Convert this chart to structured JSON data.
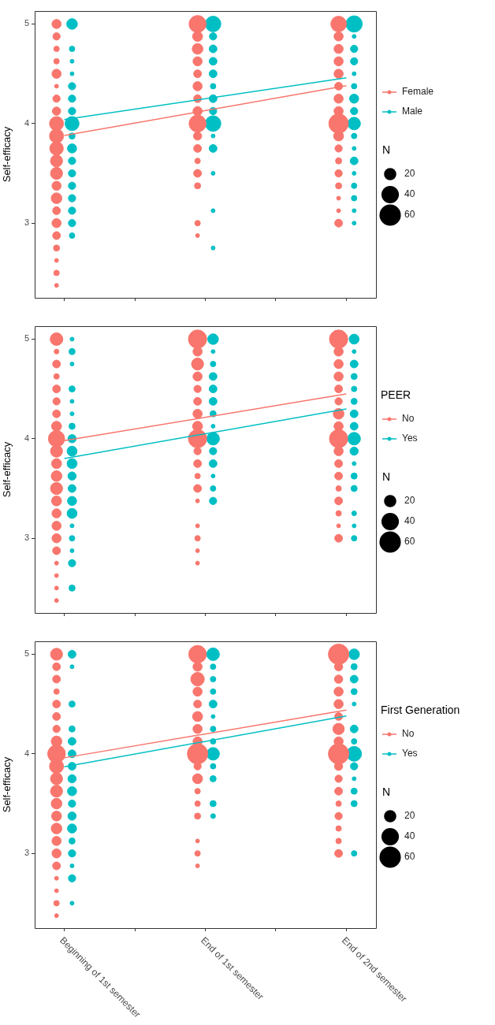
{
  "chart_data": [
    {
      "type": "bubble",
      "ylabel": "Self-efficacy",
      "categories": [
        "Beginning of 1st semester",
        "End of 1st semester",
        "End of 2nd semester"
      ],
      "ylim": [
        2.25,
        5.13
      ],
      "yticks": [
        3,
        4,
        5
      ],
      "grid": false,
      "legend": "right",
      "tick_labels": "y",
      "size_legend": [
        20,
        40,
        60
      ],
      "annotations": [
        "N"
      ],
      "series": [
        {
          "name": "Female",
          "color": "#f8766d",
          "x": [
            "Beginning of 1st semester",
            "Beginning of 1st semester",
            "Beginning of 1st semester",
            "Beginning of 1st semester",
            "Beginning of 1st semester",
            "Beginning of 1st semester",
            "Beginning of 1st semester",
            "Beginning of 1st semester",
            "Beginning of 1st semester",
            "Beginning of 1st semester",
            "Beginning of 1st semester",
            "Beginning of 1st semester",
            "Beginning of 1st semester",
            "Beginning of 1st semester",
            "Beginning of 1st semester",
            "Beginning of 1st semester",
            "Beginning of 1st semester",
            "Beginning of 1st semester",
            "Beginning of 1st semester",
            "Beginning of 1st semester",
            "Beginning of 1st semester",
            "Beginning of 1st semester",
            "End of 1st semester",
            "End of 1st semester",
            "End of 1st semester",
            "End of 1st semester",
            "End of 1st semester",
            "End of 1st semester",
            "End of 1st semester",
            "End of 1st semester",
            "End of 1st semester",
            "End of 1st semester",
            "End of 1st semester",
            "End of 1st semester",
            "End of 1st semester",
            "End of 1st semester",
            "End of 1st semester",
            "End of 1st semester",
            "End of 2nd semester",
            "End of 2nd semester",
            "End of 2nd semester",
            "End of 2nd semester",
            "End of 2nd semester",
            "End of 2nd semester",
            "End of 2nd semester",
            "End of 2nd semester",
            "End of 2nd semester",
            "End of 2nd semester",
            "End of 2nd semester",
            "End of 2nd semester",
            "End of 2nd semester",
            "End of 2nd semester",
            "End of 2nd semester",
            "End of 2nd semester",
            "End of 2nd semester"
          ],
          "values": [
            5,
            4.875,
            4.75,
            4.625,
            4.5,
            4.375,
            4.25,
            4.125,
            4,
            3.875,
            3.75,
            3.625,
            3.5,
            3.375,
            3.25,
            3.125,
            3,
            2.875,
            2.75,
            2.625,
            2.5,
            2.375,
            5,
            4.875,
            4.75,
            4.625,
            4.5,
            4.375,
            4.25,
            4.125,
            4,
            3.875,
            3.75,
            3.625,
            3.5,
            3.375,
            3,
            2.875,
            5,
            4.875,
            4.75,
            4.625,
            4.5,
            4.375,
            4.25,
            4.125,
            4,
            3.875,
            3.75,
            3.625,
            3.5,
            3.375,
            3.25,
            3.125,
            3
          ],
          "sizes": [
            11,
            7,
            4,
            4,
            11,
            2,
            7,
            9,
            26,
            26,
            24,
            19,
            19,
            11,
            15,
            8,
            11,
            8,
            5,
            2,
            4,
            2,
            38,
            13,
            15,
            11,
            8,
            11,
            8,
            11,
            38,
            9,
            8,
            4,
            8,
            5,
            4,
            2,
            32,
            11,
            11,
            11,
            11,
            8,
            11,
            11,
            50,
            13,
            7,
            5,
            7,
            5,
            2,
            2,
            8
          ]
        },
        {
          "name": "Male",
          "color": "#00bfc4",
          "x": [
            "Beginning of 1st semester",
            "Beginning of 1st semester",
            "Beginning of 1st semester",
            "Beginning of 1st semester",
            "Beginning of 1st semester",
            "Beginning of 1st semester",
            "Beginning of 1st semester",
            "Beginning of 1st semester",
            "Beginning of 1st semester",
            "Beginning of 1st semester",
            "Beginning of 1st semester",
            "Beginning of 1st semester",
            "Beginning of 1st semester",
            "Beginning of 1st semester",
            "Beginning of 1st semester",
            "Beginning of 1st semester",
            "Beginning of 1st semester",
            "End of 1st semester",
            "End of 1st semester",
            "End of 1st semester",
            "End of 1st semester",
            "End of 1st semester",
            "End of 1st semester",
            "End of 1st semester",
            "End of 1st semester",
            "End of 1st semester",
            "End of 1st semester",
            "End of 1st semester",
            "End of 1st semester",
            "End of 1st semester",
            "End of 1st semester",
            "End of 2nd semester",
            "End of 2nd semester",
            "End of 2nd semester",
            "End of 2nd semester",
            "End of 2nd semester",
            "End of 2nd semester",
            "End of 2nd semester",
            "End of 2nd semester",
            "End of 2nd semester",
            "End of 2nd semester",
            "End of 2nd semester",
            "End of 2nd semester",
            "End of 2nd semester",
            "End of 2nd semester",
            "End of 2nd semester",
            "End of 2nd semester",
            "End of 2nd semester"
          ],
          "values": [
            5,
            4.75,
            4.625,
            4.5,
            4.375,
            4.25,
            4.125,
            4,
            3.875,
            3.75,
            3.625,
            3.5,
            3.375,
            3.25,
            3.125,
            3,
            2.875,
            5,
            4.875,
            4.75,
            4.625,
            4.5,
            4.375,
            4.25,
            4.125,
            4,
            3.875,
            3.75,
            3.5,
            3.125,
            2.75,
            5,
            4.875,
            4.75,
            4.625,
            4.5,
            4.375,
            4.25,
            4.125,
            4,
            3.875,
            3.75,
            3.625,
            3.5,
            3.375,
            3.25,
            3.125,
            3
          ],
          "sizes": [
            15,
            4,
            2,
            2,
            7,
            7,
            7,
            26,
            5,
            11,
            7,
            7,
            7,
            7,
            7,
            7,
            4,
            32,
            7,
            8,
            8,
            8,
            4,
            8,
            7,
            32,
            2,
            8,
            2,
            2,
            2,
            35,
            2,
            7,
            7,
            2,
            4,
            11,
            7,
            21,
            4,
            2,
            8,
            2,
            4,
            4,
            2,
            2
          ]
        },
        {
          "type": "line",
          "color": "#f8766d",
          "x": [
            "Beginning of 1st semester",
            "End of 2nd semester"
          ],
          "values": [
            3.88,
            4.38
          ]
        },
        {
          "type": "line",
          "color": "#00bfc4",
          "x": [
            "Beginning of 1st semester",
            "End of 2nd semester"
          ],
          "values": [
            4.04,
            4.46
          ]
        }
      ]
    },
    {
      "type": "bubble",
      "ylabel": "Self-efficacy",
      "legend_title": "PEER",
      "categories": [
        "Beginning of 1st semester",
        "End of 1st semester",
        "End of 2nd semester"
      ],
      "ylim": [
        2.25,
        5.13
      ],
      "yticks": [
        3,
        4,
        5
      ],
      "grid": false,
      "legend": "right",
      "tick_labels": "y",
      "size_legend": [
        20,
        40,
        60
      ],
      "annotations": [
        "N"
      ],
      "series": [
        {
          "name": "No",
          "color": "#f8766d",
          "x": [
            "Beginning of 1st semester",
            "Beginning of 1st semester",
            "Beginning of 1st semester",
            "Beginning of 1st semester",
            "Beginning of 1st semester",
            "Beginning of 1st semester",
            "Beginning of 1st semester",
            "Beginning of 1st semester",
            "Beginning of 1st semester",
            "Beginning of 1st semester",
            "Beginning of 1st semester",
            "Beginning of 1st semester",
            "Beginning of 1st semester",
            "Beginning of 1st semester",
            "Beginning of 1st semester",
            "Beginning of 1st semester",
            "Beginning of 1st semester",
            "Beginning of 1st semester",
            "Beginning of 1st semester",
            "Beginning of 1st semester",
            "Beginning of 1st semester",
            "Beginning of 1st semester",
            "End of 1st semester",
            "End of 1st semester",
            "End of 1st semester",
            "End of 1st semester",
            "End of 1st semester",
            "End of 1st semester",
            "End of 1st semester",
            "End of 1st semester",
            "End of 1st semester",
            "End of 1st semester",
            "End of 1st semester",
            "End of 1st semester",
            "End of 1st semester",
            "End of 1st semester",
            "End of 1st semester",
            "End of 1st semester",
            "End of 1st semester",
            "End of 1st semester",
            "End of 2nd semester",
            "End of 2nd semester",
            "End of 2nd semester",
            "End of 2nd semester",
            "End of 2nd semester",
            "End of 2nd semester",
            "End of 2nd semester",
            "End of 2nd semester",
            "End of 2nd semester",
            "End of 2nd semester",
            "End of 2nd semester",
            "End of 2nd semester",
            "End of 2nd semester",
            "End of 2nd semester",
            "End of 2nd semester",
            "End of 2nd semester",
            "End of 2nd semester"
          ],
          "values": [
            5,
            4.875,
            4.75,
            4.625,
            4.5,
            4.375,
            4.25,
            4.125,
            4,
            3.875,
            3.75,
            3.625,
            3.5,
            3.375,
            3.25,
            3.125,
            3,
            2.875,
            2.75,
            2.625,
            2.5,
            2.375,
            5,
            4.875,
            4.75,
            4.625,
            4.5,
            4.375,
            4.25,
            4.125,
            4,
            3.875,
            3.75,
            3.625,
            3.5,
            3.375,
            3.125,
            3,
            2.875,
            2.75,
            5,
            4.875,
            4.75,
            4.625,
            4.5,
            4.375,
            4.25,
            4.125,
            4,
            3.875,
            3.75,
            3.625,
            3.5,
            3.375,
            3.25,
            3.125,
            3
          ],
          "sizes": [
            21,
            3,
            8,
            4,
            8,
            7,
            8,
            13,
            35,
            19,
            13,
            15,
            19,
            13,
            11,
            11,
            11,
            8,
            2,
            2,
            2,
            2,
            44,
            11,
            19,
            11,
            7,
            8,
            11,
            13,
            44,
            7,
            8,
            4,
            8,
            2,
            2,
            4,
            2,
            2,
            44,
            11,
            11,
            11,
            8,
            7,
            15,
            11,
            44,
            11,
            8,
            8,
            4,
            8,
            4,
            2,
            8
          ]
        },
        {
          "name": "Yes",
          "color": "#00bfc4",
          "x": [
            "Beginning of 1st semester",
            "Beginning of 1st semester",
            "Beginning of 1st semester",
            "Beginning of 1st semester",
            "Beginning of 1st semester",
            "Beginning of 1st semester",
            "Beginning of 1st semester",
            "Beginning of 1st semester",
            "Beginning of 1st semester",
            "Beginning of 1st semester",
            "Beginning of 1st semester",
            "Beginning of 1st semester",
            "Beginning of 1st semester",
            "Beginning of 1st semester",
            "Beginning of 1st semester",
            "Beginning of 1st semester",
            "Beginning of 1st semester",
            "Beginning of 1st semester",
            "Beginning of 1st semester",
            "End of 1st semester",
            "End of 1st semester",
            "End of 1st semester",
            "End of 1st semester",
            "End of 1st semester",
            "End of 1st semester",
            "End of 1st semester",
            "End of 1st semester",
            "End of 1st semester",
            "End of 1st semester",
            "End of 1st semester",
            "End of 1st semester",
            "End of 1st semester",
            "End of 1st semester",
            "End of 2nd semester",
            "End of 2nd semester",
            "End of 2nd semester",
            "End of 2nd semester",
            "End of 2nd semester",
            "End of 2nd semester",
            "End of 2nd semester",
            "End of 2nd semester",
            "End of 2nd semester",
            "End of 2nd semester",
            "End of 2nd semester",
            "End of 2nd semester",
            "End of 2nd semester",
            "End of 2nd semester",
            "End of 2nd semester",
            "End of 2nd semester"
          ],
          "values": [
            5,
            4.875,
            4.75,
            4.5,
            4.375,
            4.25,
            4.125,
            4,
            3.875,
            3.75,
            3.625,
            3.5,
            3.375,
            3.25,
            3.125,
            3,
            2.875,
            2.75,
            2.5,
            5,
            4.875,
            4.75,
            4.625,
            4.5,
            4.375,
            4.25,
            4.125,
            4,
            3.875,
            3.75,
            3.625,
            3.5,
            3.375,
            5,
            4.875,
            4.75,
            4.625,
            4.5,
            4.375,
            4.25,
            4.125,
            4,
            3.875,
            3.75,
            3.625,
            3.5,
            3.25,
            3.125,
            3
          ],
          "sizes": [
            2,
            5,
            2,
            5,
            2,
            2,
            5,
            9,
            13,
            13,
            9,
            8,
            11,
            13,
            2,
            4,
            2,
            7,
            5,
            15,
            2,
            4,
            8,
            8,
            8,
            5,
            2,
            21,
            7,
            8,
            2,
            4,
            7,
            13,
            2,
            8,
            5,
            4,
            5,
            8,
            8,
            21,
            9,
            2,
            5,
            5,
            3,
            2,
            4
          ]
        },
        {
          "type": "line",
          "color": "#f8766d",
          "x": [
            "Beginning of 1st semester",
            "End of 2nd semester"
          ],
          "values": [
            3.98,
            4.45
          ]
        },
        {
          "type": "line",
          "color": "#00bfc4",
          "x": [
            "Beginning of 1st semester",
            "End of 2nd semester"
          ],
          "values": [
            3.8,
            4.3
          ]
        }
      ]
    },
    {
      "type": "bubble",
      "ylabel": "Self-efficacy",
      "legend_title": "First Generation",
      "categories": [
        "Beginning of 1st semester",
        "End of 1st semester",
        "End of 2nd semester"
      ],
      "ylim": [
        2.25,
        5.13
      ],
      "yticks": [
        3,
        4,
        5
      ],
      "grid": false,
      "legend": "right",
      "size_legend": [
        20,
        40,
        60
      ],
      "annotations": [
        "N"
      ],
      "series": [
        {
          "name": "No",
          "color": "#f8766d",
          "x": [
            "Beginning of 1st semester",
            "Beginning of 1st semester",
            "Beginning of 1st semester",
            "Beginning of 1st semester",
            "Beginning of 1st semester",
            "Beginning of 1st semester",
            "Beginning of 1st semester",
            "Beginning of 1st semester",
            "Beginning of 1st semester",
            "Beginning of 1st semester",
            "Beginning of 1st semester",
            "Beginning of 1st semester",
            "Beginning of 1st semester",
            "Beginning of 1st semester",
            "Beginning of 1st semester",
            "Beginning of 1st semester",
            "Beginning of 1st semester",
            "Beginning of 1st semester",
            "Beginning of 1st semester",
            "Beginning of 1st semester",
            "Beginning of 1st semester",
            "Beginning of 1st semester",
            "End of 1st semester",
            "End of 1st semester",
            "End of 1st semester",
            "End of 1st semester",
            "End of 1st semester",
            "End of 1st semester",
            "End of 1st semester",
            "End of 1st semester",
            "End of 1st semester",
            "End of 1st semester",
            "End of 1st semester",
            "End of 1st semester",
            "End of 1st semester",
            "End of 1st semester",
            "End of 1st semester",
            "End of 1st semester",
            "End of 1st semester",
            "End of 2nd semester",
            "End of 2nd semester",
            "End of 2nd semester",
            "End of 2nd semester",
            "End of 2nd semester",
            "End of 2nd semester",
            "End of 2nd semester",
            "End of 2nd semester",
            "End of 2nd semester",
            "End of 2nd semester",
            "End of 2nd semester",
            "End of 2nd semester",
            "End of 2nd semester",
            "End of 2nd semester",
            "End of 2nd semester",
            "End of 2nd semester",
            "End of 2nd semester"
          ],
          "values": [
            5,
            4.875,
            4.75,
            4.625,
            4.5,
            4.375,
            4.25,
            4.125,
            4,
            3.875,
            3.75,
            3.625,
            3.5,
            3.375,
            3.25,
            3.125,
            3,
            2.875,
            2.75,
            2.625,
            2.5,
            2.375,
            5,
            4.875,
            4.75,
            4.625,
            4.5,
            4.375,
            4.25,
            4.125,
            4,
            3.875,
            3.75,
            3.625,
            3.5,
            3.375,
            3.125,
            3,
            2.875,
            5,
            4.875,
            4.75,
            4.625,
            4.5,
            4.375,
            4.25,
            4.125,
            4,
            3.875,
            3.75,
            3.625,
            3.5,
            3.375,
            3.25,
            3.125,
            3
          ],
          "sizes": [
            19,
            8,
            8,
            4,
            8,
            8,
            7,
            15,
            41,
            26,
            19,
            19,
            15,
            13,
            15,
            11,
            11,
            8,
            2,
            2,
            4,
            2,
            41,
            11,
            24,
            11,
            8,
            13,
            11,
            11,
            55,
            7,
            13,
            4,
            4,
            5,
            2,
            4,
            2,
            55,
            9,
            9,
            11,
            11,
            8,
            17,
            11,
            55,
            9,
            7,
            8,
            4,
            7,
            4,
            4,
            8
          ]
        },
        {
          "name": "Yes",
          "color": "#00bfc4",
          "x": [
            "Beginning of 1st semester",
            "Beginning of 1st semester",
            "Beginning of 1st semester",
            "Beginning of 1st semester",
            "Beginning of 1st semester",
            "Beginning of 1st semester",
            "Beginning of 1st semester",
            "Beginning of 1st semester",
            "Beginning of 1st semester",
            "Beginning of 1st semester",
            "Beginning of 1st semester",
            "Beginning of 1st semester",
            "Beginning of 1st semester",
            "Beginning of 1st semester",
            "Beginning of 1st semester",
            "Beginning of 1st semester",
            "Beginning of 1st semester",
            "End of 1st semester",
            "End of 1st semester",
            "End of 1st semester",
            "End of 1st semester",
            "End of 1st semester",
            "End of 1st semester",
            "End of 1st semester",
            "End of 1st semester",
            "End of 1st semester",
            "End of 1st semester",
            "End of 1st semester",
            "End of 1st semester",
            "End of 1st semester",
            "End of 2nd semester",
            "End of 2nd semester",
            "End of 2nd semester",
            "End of 2nd semester",
            "End of 2nd semester",
            "End of 2nd semester",
            "End of 2nd semester",
            "End of 2nd semester",
            "End of 2nd semester",
            "End of 2nd semester",
            "End of 2nd semester",
            "End of 2nd semester",
            "End of 2nd semester"
          ],
          "values": [
            5,
            4.875,
            4.5,
            4.25,
            4.125,
            4,
            3.875,
            3.75,
            3.625,
            3.5,
            3.375,
            3.25,
            3.125,
            3,
            2.875,
            2.75,
            2.5,
            5,
            4.875,
            4.75,
            4.625,
            4.5,
            4.375,
            4.25,
            4.125,
            4,
            3.875,
            3.75,
            3.5,
            3.375,
            5,
            4.875,
            4.75,
            4.625,
            4.5,
            4.25,
            4.125,
            4,
            3.875,
            3.75,
            3.625,
            3.5,
            3
          ],
          "sizes": [
            8,
            2,
            5,
            5,
            8,
            8,
            8,
            9,
            11,
            7,
            9,
            11,
            5,
            7,
            2,
            7,
            2,
            21,
            4,
            4,
            4,
            8,
            2,
            4,
            4,
            21,
            4,
            5,
            5,
            3,
            15,
            5,
            8,
            5,
            2,
            8,
            4,
            29,
            7,
            2,
            5,
            5,
            4
          ]
        },
        {
          "type": "line",
          "color": "#f8766d",
          "x": [
            "Beginning of 1st semester",
            "End of 2nd semester"
          ],
          "values": [
            3.96,
            4.44
          ]
        },
        {
          "type": "line",
          "color": "#00bfc4",
          "x": [
            "Beginning of 1st semester",
            "End of 2nd semester"
          ],
          "values": [
            3.87,
            4.38
          ]
        }
      ]
    }
  ]
}
